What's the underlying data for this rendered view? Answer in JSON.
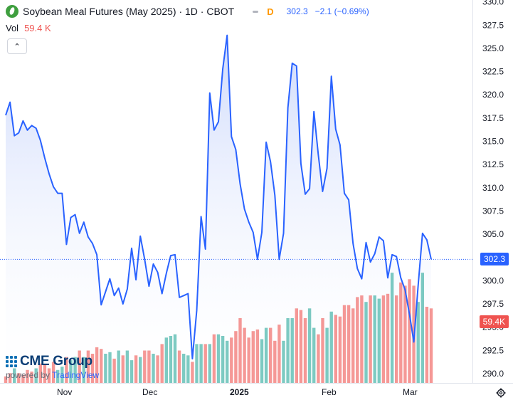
{
  "header": {
    "title": "Soybean Meal Futures (May 2025) · 1D · CBOT",
    "interval_badge": "D",
    "last_price": "302.3",
    "change": "−2.1 (−0.69%)",
    "vol_label": "Vol",
    "vol_value": "59.4 K"
  },
  "collapse_glyph": "⌃",
  "price_tag": "302.3",
  "volume_tag": "59.4K",
  "logo": {
    "text": "CME Group",
    "powered": "powered by",
    "brand": "TradingView"
  },
  "colors": {
    "line": "#2962ff",
    "up": "#26a69a",
    "down": "#ef5350",
    "area": "#e3ebfd",
    "axis_text": "#131722"
  },
  "icons": {
    "symbol": "soybean-leaf-icon",
    "settings": "gear-icon"
  },
  "chart_data": {
    "type": "line",
    "title": "Soybean Meal Futures (May 2025) · 1D · CBOT",
    "y_ticks": [
      290.0,
      292.5,
      295.0,
      297.5,
      300.0,
      302.5,
      305.0,
      307.5,
      310.0,
      312.5,
      315.0,
      317.5,
      320.0,
      322.5,
      325.0,
      327.5,
      330.0
    ],
    "ylim": [
      289.0,
      330.2
    ],
    "x_ticks": [
      "Nov",
      "Dec",
      "2025",
      "Feb",
      "Mar"
    ],
    "last_value": 302.3,
    "series": [
      {
        "values": [
          317.8,
          319.2,
          315.6,
          315.9,
          317.2,
          316.2,
          316.7,
          316.4,
          315.1,
          313.2,
          311.5,
          310.1,
          309.4,
          309.4,
          303.9,
          306.8,
          307.1,
          305.1,
          306.3,
          304.7,
          304.0,
          302.8,
          297.4,
          298.8,
          300.2,
          298.4,
          299.2,
          297.5,
          299.1,
          303.5,
          300.1,
          304.8,
          302.3,
          299.4,
          301.8,
          300.9,
          298.6,
          300.8,
          302.7,
          302.8,
          298.2,
          298.4,
          298.6,
          291.6,
          296.8,
          306.9,
          303.4,
          320.2,
          316.2,
          317.1,
          322.8,
          326.4,
          315.5,
          314.1,
          310.4,
          307.7,
          306.3,
          305.2,
          302.3,
          305.2,
          314.9,
          312.8,
          309.2,
          302.3,
          305.1,
          318.6,
          323.4,
          323.1,
          312.6,
          309.3,
          309.9,
          318.2,
          313.6,
          309.6,
          312.1,
          322.0,
          316.3,
          314.6,
          309.4,
          308.7,
          304.0,
          301.3,
          300.2,
          304.1,
          302.0,
          302.9,
          304.7,
          304.3,
          300.3,
          302.8,
          302.6,
          300.3,
          299.0,
          296.4,
          293.4,
          299.5,
          305.1,
          304.4,
          302.3
        ],
        "volume": [
          4,
          6,
          9,
          6,
          5,
          8,
          7,
          9,
          12,
          11,
          9,
          13,
          8,
          10,
          16,
          14,
          16,
          20,
          16,
          20,
          18,
          22,
          21,
          18,
          19,
          15,
          20,
          17,
          20,
          14,
          17,
          16,
          20,
          20,
          18,
          17,
          24,
          28,
          29,
          30,
          20,
          18,
          17,
          13,
          24,
          24,
          24,
          24,
          30,
          30,
          29,
          26,
          28,
          32,
          40,
          34,
          28,
          32,
          33,
          27,
          34,
          34,
          26,
          36,
          26,
          40,
          40,
          46,
          45,
          40,
          46,
          34,
          30,
          40,
          34,
          44,
          42,
          41,
          48,
          48,
          46,
          53,
          54,
          50,
          54,
          54,
          52,
          54,
          55,
          68,
          54,
          62,
          60,
          64,
          60,
          50,
          68,
          47,
          46
        ],
        "volume_up": [
          false,
          false,
          true,
          false,
          false,
          false,
          false,
          true,
          false,
          false,
          false,
          false,
          true,
          true,
          false,
          true,
          true,
          false,
          true,
          false,
          false,
          false,
          false,
          true,
          true,
          false,
          true,
          false,
          true,
          true,
          false,
          true,
          false,
          false,
          true,
          false,
          false,
          true,
          true,
          true,
          false,
          true,
          true,
          false,
          true,
          true,
          false,
          true,
          false,
          true,
          true,
          true,
          false,
          false,
          false,
          false,
          false,
          false,
          false,
          true,
          true,
          false,
          false,
          false,
          true,
          true,
          true,
          false,
          false,
          false,
          true,
          true,
          false,
          false,
          true,
          true,
          false,
          false,
          false,
          false,
          false,
          false,
          false,
          true,
          false,
          true,
          true,
          false,
          false,
          true,
          false,
          false,
          false,
          false,
          false,
          true,
          true,
          false,
          false
        ]
      }
    ]
  }
}
